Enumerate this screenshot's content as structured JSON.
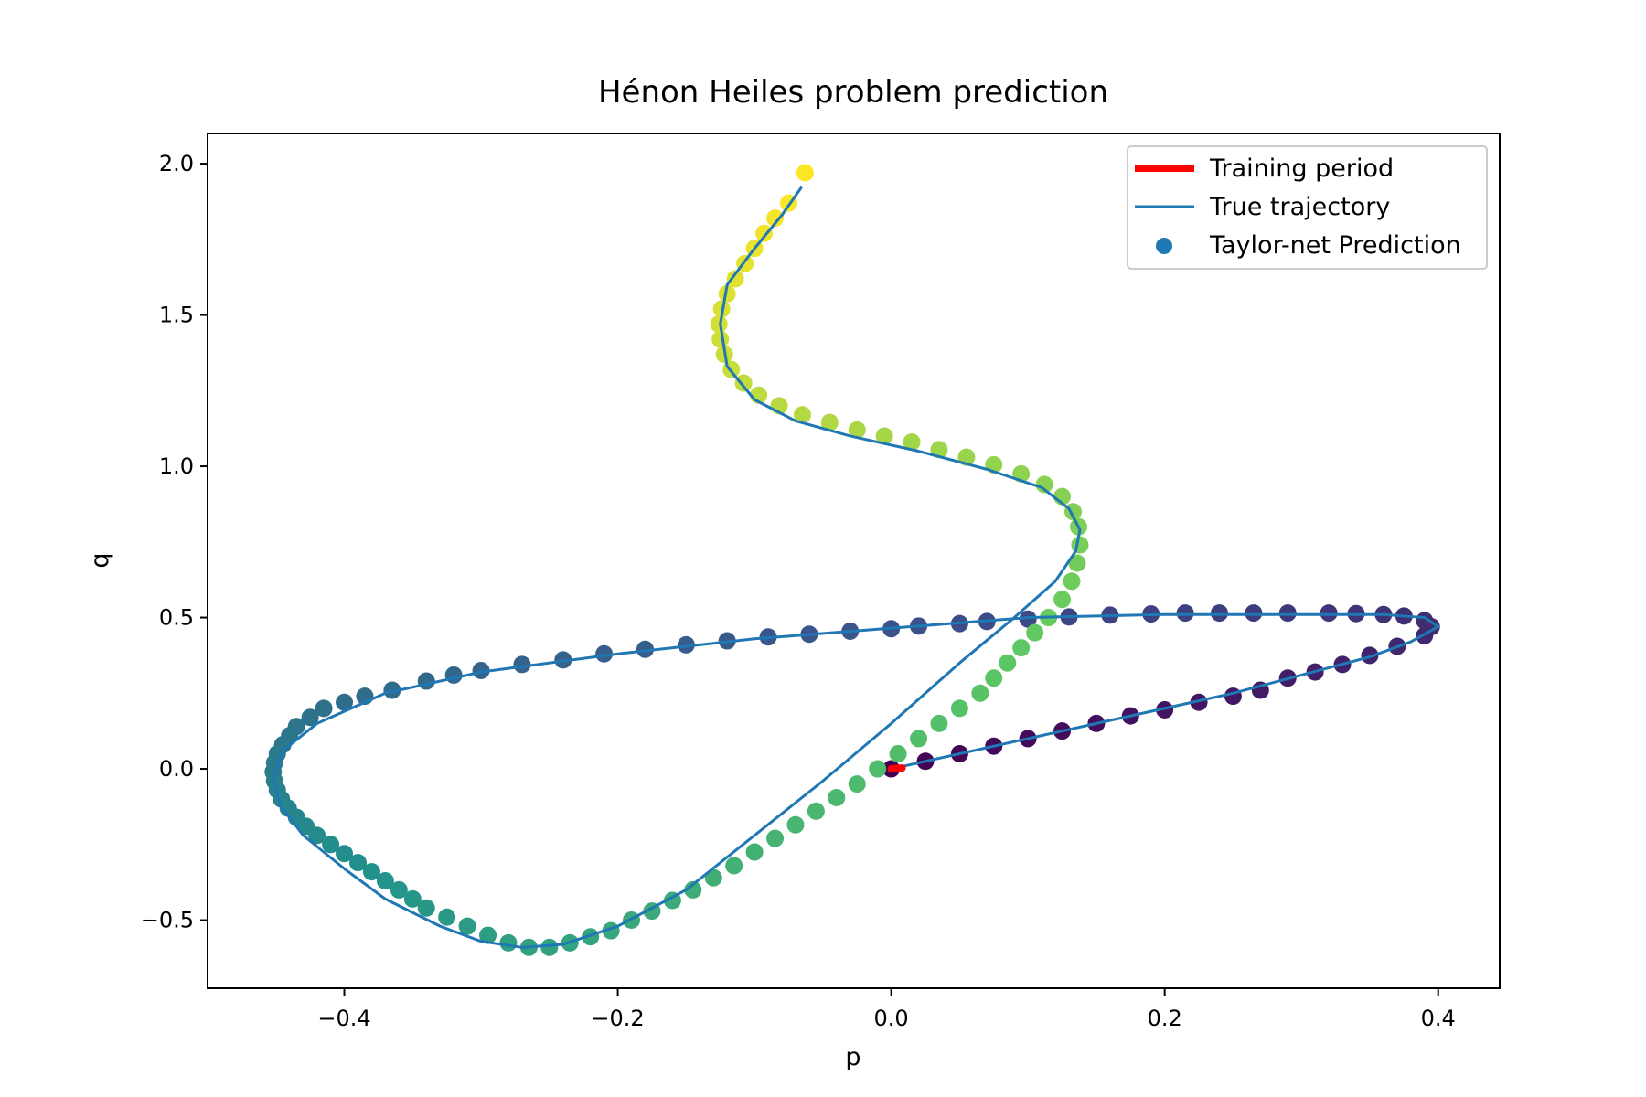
{
  "chart_data": {
    "type": "scatter",
    "title": "Hénon Heiles problem prediction",
    "xlabel": "p",
    "ylabel": "q",
    "xlim": [
      -0.5,
      0.445
    ],
    "ylim": [
      -0.725,
      2.1
    ],
    "x_ticks": [
      -0.4,
      -0.2,
      0.0,
      0.2,
      0.4
    ],
    "x_tick_labels": [
      "−0.4",
      "−0.2",
      "0.0",
      "0.2",
      "0.4"
    ],
    "y_ticks": [
      -0.5,
      0.0,
      0.5,
      1.0,
      1.5,
      2.0
    ],
    "y_tick_labels": [
      "−0.5",
      "0.0",
      "0.5",
      "1.0",
      "1.5",
      "2.0"
    ],
    "grid": false,
    "legend_position": "top-right",
    "colormap": "viridis",
    "series": [
      {
        "name": "Training period",
        "kind": "line",
        "color": "#ff0000",
        "points": [
          [
            0.0,
            0.0
          ],
          [
            0.008,
            0.003
          ]
        ]
      },
      {
        "name": "True trajectory",
        "kind": "line",
        "color": "#1f77b4",
        "points": [
          [
            0.0,
            0.0
          ],
          [
            0.05,
            0.05
          ],
          [
            0.1,
            0.1
          ],
          [
            0.15,
            0.15
          ],
          [
            0.2,
            0.2
          ],
          [
            0.25,
            0.25
          ],
          [
            0.3,
            0.31
          ],
          [
            0.35,
            0.37
          ],
          [
            0.38,
            0.42
          ],
          [
            0.4,
            0.47
          ],
          [
            0.39,
            0.5
          ],
          [
            0.36,
            0.51
          ],
          [
            0.3,
            0.51
          ],
          [
            0.2,
            0.51
          ],
          [
            0.1,
            0.5
          ],
          [
            0.0,
            0.465
          ],
          [
            -0.1,
            0.43
          ],
          [
            -0.2,
            0.38
          ],
          [
            -0.3,
            0.32
          ],
          [
            -0.37,
            0.25
          ],
          [
            -0.42,
            0.15
          ],
          [
            -0.445,
            0.06
          ],
          [
            -0.452,
            -0.03
          ],
          [
            -0.447,
            -0.12
          ],
          [
            -0.43,
            -0.22
          ],
          [
            -0.4,
            -0.33
          ],
          [
            -0.37,
            -0.43
          ],
          [
            -0.33,
            -0.52
          ],
          [
            -0.3,
            -0.57
          ],
          [
            -0.27,
            -0.59
          ],
          [
            -0.24,
            -0.58
          ],
          [
            -0.2,
            -0.52
          ],
          [
            -0.15,
            -0.4
          ],
          [
            -0.1,
            -0.22
          ],
          [
            -0.05,
            -0.04
          ],
          [
            0.0,
            0.15
          ],
          [
            0.05,
            0.35
          ],
          [
            0.09,
            0.5
          ],
          [
            0.12,
            0.62
          ],
          [
            0.135,
            0.72
          ],
          [
            0.138,
            0.79
          ],
          [
            0.13,
            0.86
          ],
          [
            0.11,
            0.93
          ],
          [
            0.07,
            0.99
          ],
          [
            0.02,
            1.05
          ],
          [
            -0.03,
            1.1
          ],
          [
            -0.07,
            1.15
          ],
          [
            -0.1,
            1.22
          ],
          [
            -0.12,
            1.33
          ],
          [
            -0.125,
            1.47
          ],
          [
            -0.12,
            1.6
          ],
          [
            -0.1,
            1.72
          ],
          [
            -0.08,
            1.83
          ],
          [
            -0.066,
            1.92
          ]
        ]
      },
      {
        "name": "Taylor-net Prediction",
        "kind": "scatter",
        "color": "#1f77b4",
        "points": [
          [
            0.0,
            0.0
          ],
          [
            0.025,
            0.025
          ],
          [
            0.05,
            0.05
          ],
          [
            0.075,
            0.075
          ],
          [
            0.1,
            0.1
          ],
          [
            0.125,
            0.125
          ],
          [
            0.15,
            0.15
          ],
          [
            0.175,
            0.175
          ],
          [
            0.2,
            0.195
          ],
          [
            0.225,
            0.22
          ],
          [
            0.25,
            0.24
          ],
          [
            0.27,
            0.26
          ],
          [
            0.29,
            0.3
          ],
          [
            0.31,
            0.32
          ],
          [
            0.33,
            0.345
          ],
          [
            0.35,
            0.375
          ],
          [
            0.37,
            0.405
          ],
          [
            0.39,
            0.44
          ],
          [
            0.395,
            0.47
          ],
          [
            0.39,
            0.49
          ],
          [
            0.375,
            0.505
          ],
          [
            0.36,
            0.51
          ],
          [
            0.34,
            0.513
          ],
          [
            0.32,
            0.515
          ],
          [
            0.29,
            0.515
          ],
          [
            0.265,
            0.515
          ],
          [
            0.24,
            0.515
          ],
          [
            0.215,
            0.515
          ],
          [
            0.19,
            0.512
          ],
          [
            0.16,
            0.508
          ],
          [
            0.13,
            0.502
          ],
          [
            0.1,
            0.495
          ],
          [
            0.07,
            0.487
          ],
          [
            0.05,
            0.48
          ],
          [
            0.02,
            0.472
          ],
          [
            0.0,
            0.463
          ],
          [
            -0.03,
            0.455
          ],
          [
            -0.06,
            0.445
          ],
          [
            -0.09,
            0.436
          ],
          [
            -0.12,
            0.423
          ],
          [
            -0.15,
            0.41
          ],
          [
            -0.18,
            0.395
          ],
          [
            -0.21,
            0.38
          ],
          [
            -0.24,
            0.36
          ],
          [
            -0.27,
            0.345
          ],
          [
            -0.3,
            0.325
          ],
          [
            -0.32,
            0.31
          ],
          [
            -0.34,
            0.29
          ],
          [
            -0.365,
            0.26
          ],
          [
            -0.385,
            0.24
          ],
          [
            -0.4,
            0.22
          ],
          [
            -0.415,
            0.2
          ],
          [
            -0.425,
            0.17
          ],
          [
            -0.435,
            0.14
          ],
          [
            -0.44,
            0.11
          ],
          [
            -0.445,
            0.08
          ],
          [
            -0.449,
            0.05
          ],
          [
            -0.451,
            0.02
          ],
          [
            -0.452,
            -0.01
          ],
          [
            -0.451,
            -0.04
          ],
          [
            -0.449,
            -0.07
          ],
          [
            -0.446,
            -0.1
          ],
          [
            -0.441,
            -0.13
          ],
          [
            -0.435,
            -0.16
          ],
          [
            -0.428,
            -0.19
          ],
          [
            -0.42,
            -0.22
          ],
          [
            -0.41,
            -0.25
          ],
          [
            -0.4,
            -0.28
          ],
          [
            -0.39,
            -0.31
          ],
          [
            -0.38,
            -0.34
          ],
          [
            -0.37,
            -0.37
          ],
          [
            -0.36,
            -0.4
          ],
          [
            -0.35,
            -0.43
          ],
          [
            -0.34,
            -0.46
          ],
          [
            -0.325,
            -0.49
          ],
          [
            -0.31,
            -0.52
          ],
          [
            -0.295,
            -0.55
          ],
          [
            -0.28,
            -0.575
          ],
          [
            -0.265,
            -0.59
          ],
          [
            -0.25,
            -0.59
          ],
          [
            -0.235,
            -0.575
          ],
          [
            -0.22,
            -0.555
          ],
          [
            -0.205,
            -0.535
          ],
          [
            -0.19,
            -0.5
          ],
          [
            -0.175,
            -0.47
          ],
          [
            -0.16,
            -0.435
          ],
          [
            -0.145,
            -0.4
          ],
          [
            -0.13,
            -0.36
          ],
          [
            -0.115,
            -0.32
          ],
          [
            -0.1,
            -0.275
          ],
          [
            -0.085,
            -0.23
          ],
          [
            -0.07,
            -0.185
          ],
          [
            -0.055,
            -0.14
          ],
          [
            -0.04,
            -0.095
          ],
          [
            -0.025,
            -0.05
          ],
          [
            -0.01,
            0.0
          ],
          [
            0.005,
            0.05
          ],
          [
            0.02,
            0.1
          ],
          [
            0.035,
            0.15
          ],
          [
            0.05,
            0.2
          ],
          [
            0.065,
            0.25
          ],
          [
            0.075,
            0.3
          ],
          [
            0.085,
            0.35
          ],
          [
            0.095,
            0.4
          ],
          [
            0.105,
            0.45
          ],
          [
            0.115,
            0.5
          ],
          [
            0.125,
            0.56
          ],
          [
            0.132,
            0.62
          ],
          [
            0.136,
            0.68
          ],
          [
            0.138,
            0.74
          ],
          [
            0.137,
            0.8
          ],
          [
            0.133,
            0.85
          ],
          [
            0.125,
            0.9
          ],
          [
            0.112,
            0.94
          ],
          [
            0.095,
            0.975
          ],
          [
            0.075,
            1.005
          ],
          [
            0.055,
            1.03
          ],
          [
            0.035,
            1.055
          ],
          [
            0.015,
            1.08
          ],
          [
            -0.005,
            1.1
          ],
          [
            -0.025,
            1.12
          ],
          [
            -0.045,
            1.145
          ],
          [
            -0.065,
            1.17
          ],
          [
            -0.082,
            1.2
          ],
          [
            -0.097,
            1.235
          ],
          [
            -0.108,
            1.275
          ],
          [
            -0.117,
            1.32
          ],
          [
            -0.122,
            1.37
          ],
          [
            -0.125,
            1.42
          ],
          [
            -0.126,
            1.47
          ],
          [
            -0.124,
            1.52
          ],
          [
            -0.12,
            1.57
          ],
          [
            -0.114,
            1.62
          ],
          [
            -0.107,
            1.67
          ],
          [
            -0.1,
            1.72
          ],
          [
            -0.093,
            1.77
          ],
          [
            -0.085,
            1.82
          ],
          [
            -0.075,
            1.87
          ],
          [
            -0.063,
            1.97
          ]
        ]
      }
    ]
  }
}
